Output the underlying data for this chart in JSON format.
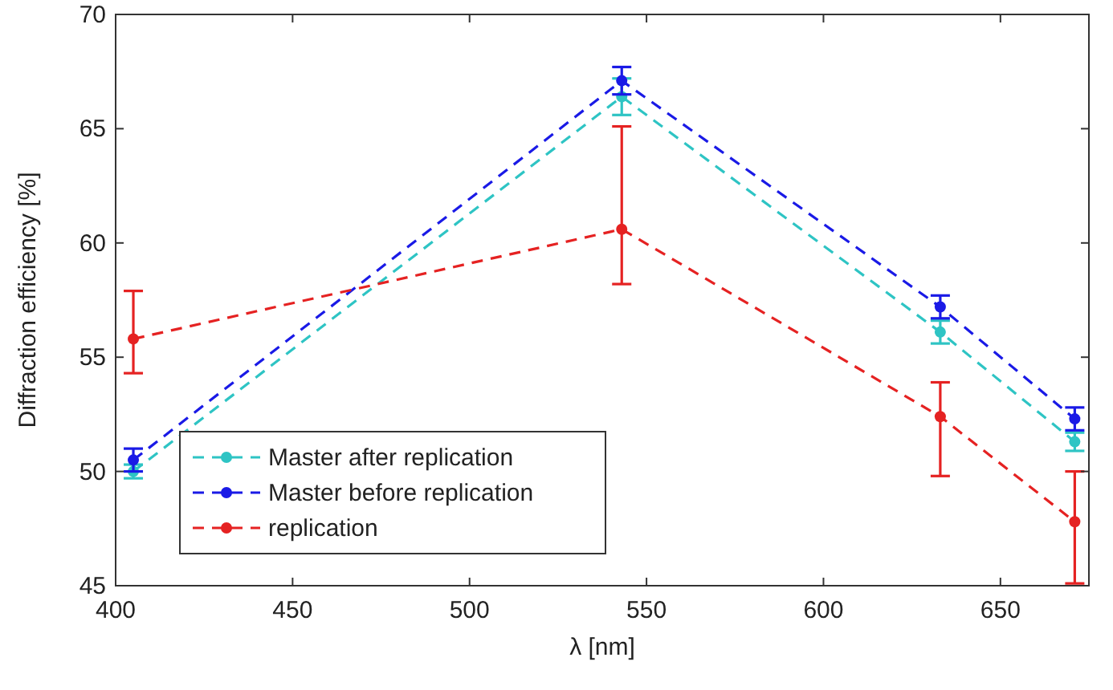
{
  "chart_data": {
    "type": "line",
    "xlabel": "λ [nm]",
    "ylabel": "Diffraction efficiency [%]",
    "xlim": [
      400,
      675
    ],
    "xticks": [
      400,
      450,
      500,
      550,
      600,
      650
    ],
    "ylim": [
      45,
      70
    ],
    "yticks": [
      45,
      50,
      55,
      60,
      65,
      70
    ],
    "grid": false,
    "legend": "bottom left",
    "marker": "circle",
    "line_style": "dashed",
    "series": [
      {
        "name": "Master after replication",
        "color": "#2ec4c4",
        "x": [
          405,
          543,
          633,
          671
        ],
        "values": [
          50.0,
          66.4,
          56.1,
          51.3
        ],
        "errors": [
          0.3,
          0.8,
          0.5,
          0.4
        ]
      },
      {
        "name": "Master before replication",
        "color": "#1a1ae6",
        "x": [
          405,
          543,
          633,
          671
        ],
        "values": [
          50.5,
          67.1,
          57.2,
          52.3
        ],
        "errors": [
          0.5,
          0.6,
          0.5,
          0.5
        ]
      },
      {
        "name": "replication",
        "color": "#e52222",
        "x": [
          405,
          543,
          633,
          671
        ],
        "values": [
          55.8,
          60.6,
          52.4,
          47.8
        ],
        "errors": [
          [
            54.3,
            57.9
          ],
          [
            58.2,
            65.1
          ],
          [
            49.8,
            53.9
          ],
          [
            45.1,
            50.0
          ]
        ]
      }
    ]
  }
}
